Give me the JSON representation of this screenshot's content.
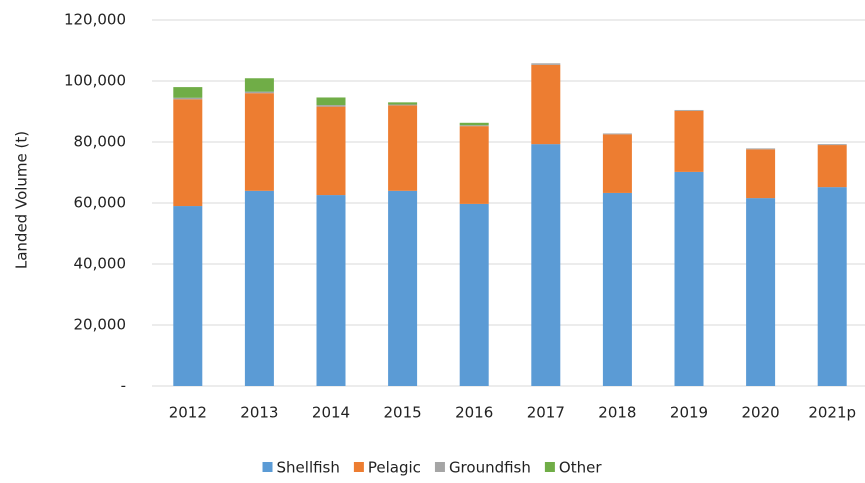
{
  "chart_data": {
    "type": "stacked_bar",
    "y_label": "Landed Volume (t)",
    "categories": [
      "2012",
      "2013",
      "2014",
      "2015",
      "2016",
      "2017",
      "2018",
      "2019",
      "2020",
      "2021p"
    ],
    "series": [
      {
        "name": "Shellfish",
        "color": "#5b9bd5",
        "values": [
          59000,
          64000,
          62600,
          64000,
          59700,
          79300,
          63300,
          70200,
          61600,
          65200
        ]
      },
      {
        "name": "Pelagic",
        "color": "#ed7d31",
        "values": [
          35000,
          32000,
          29000,
          28000,
          25500,
          26000,
          19200,
          20000,
          16000,
          13800
        ]
      },
      {
        "name": "Groundfish",
        "color": "#a5a5a5",
        "values": [
          500,
          500,
          500,
          300,
          300,
          500,
          300,
          300,
          300,
          300
        ]
      },
      {
        "name": "Other",
        "color": "#70ad47",
        "values": [
          3500,
          4400,
          2500,
          700,
          800,
          0,
          0,
          0,
          0,
          0
        ]
      }
    ],
    "ylim": [
      0,
      120000
    ],
    "yticks": [
      {
        "value": 0,
        "label": "-"
      },
      {
        "value": 20000,
        "label": "20,000"
      },
      {
        "value": 40000,
        "label": "40,000"
      },
      {
        "value": 60000,
        "label": "60,000"
      },
      {
        "value": 80000,
        "label": "80,000"
      },
      {
        "value": 100000,
        "label": "100,000"
      },
      {
        "value": 120000,
        "label": "120,000"
      }
    ],
    "grid": true,
    "legend": "bottom"
  }
}
